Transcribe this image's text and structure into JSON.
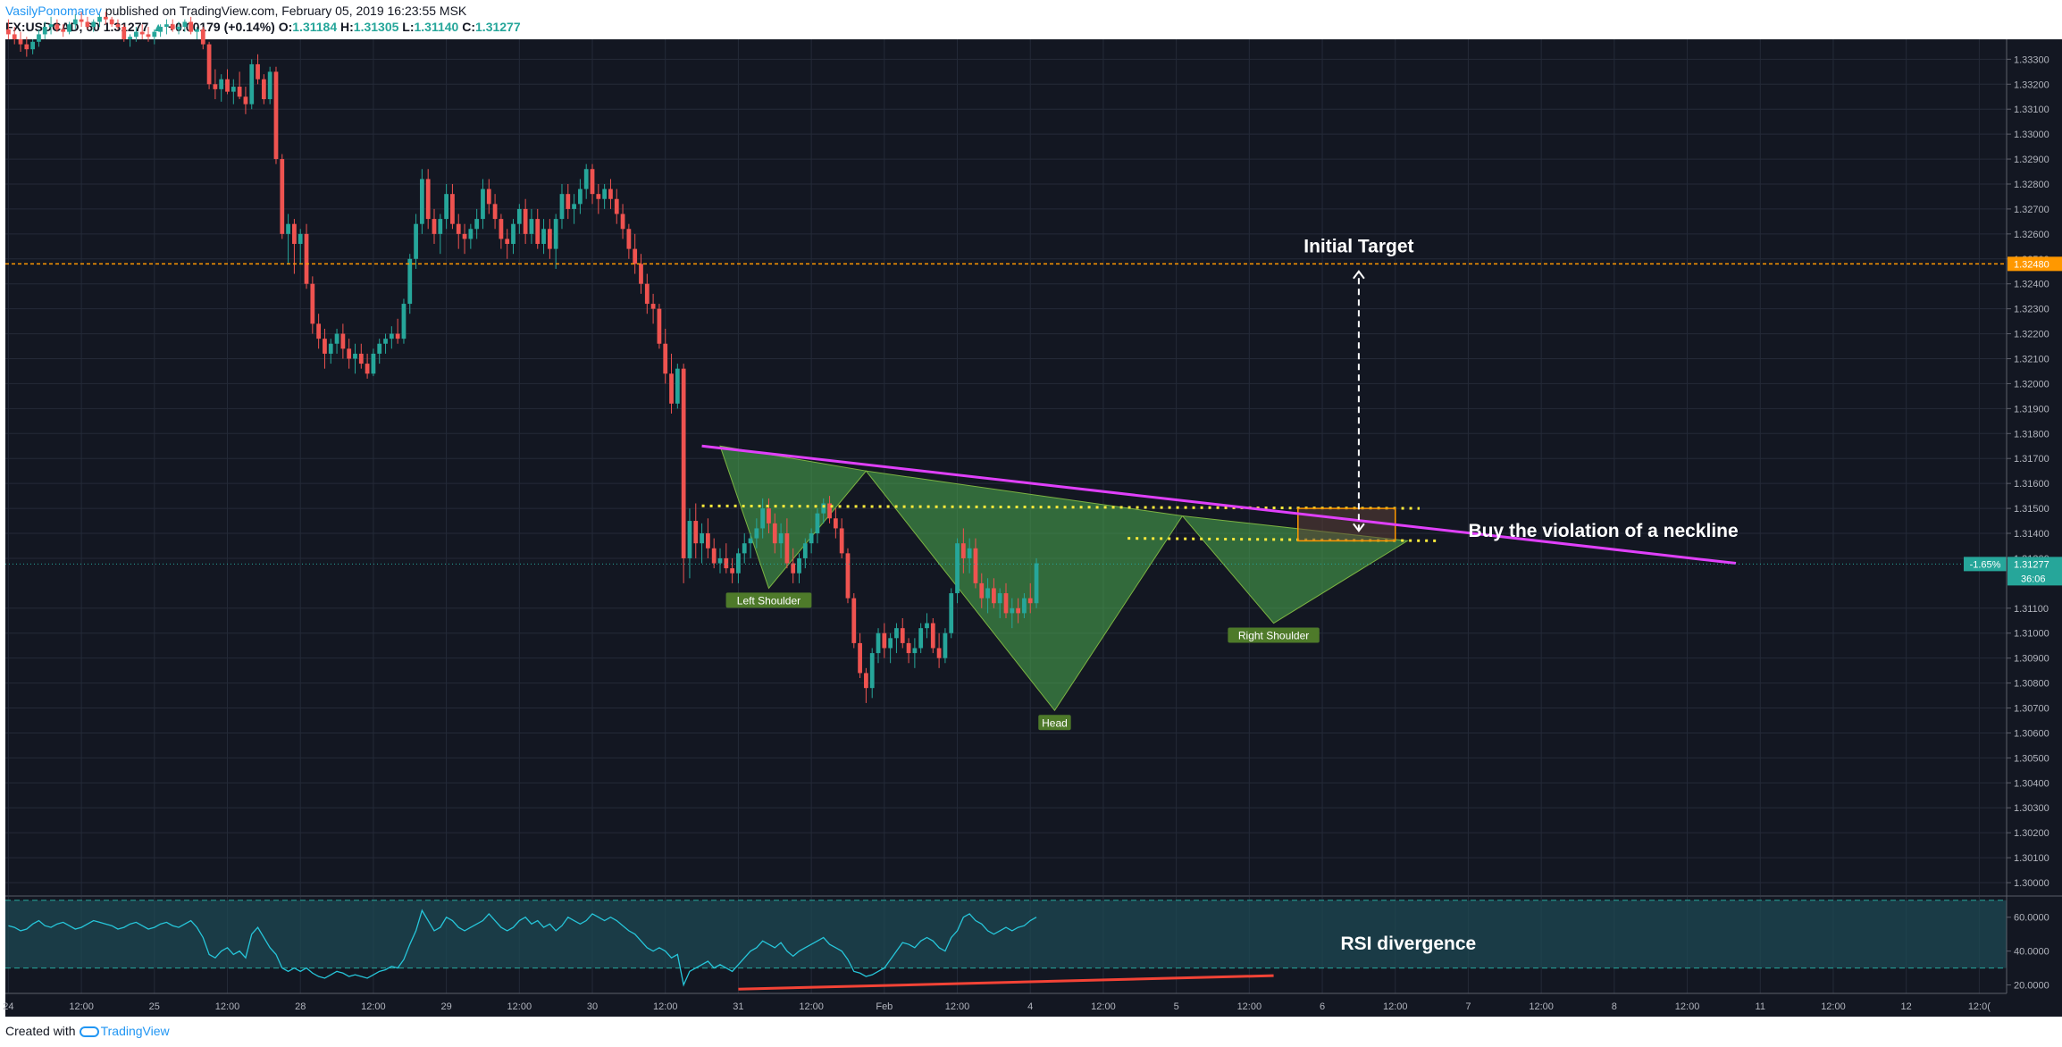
{
  "header": {
    "author": "VasilyPonomarev",
    "published": "published on TradingView.com, February 05, 2019 16:23:55 MSK",
    "symbol": "FX:USDCAD, 60",
    "price": "1.31277",
    "change_arrow": "▲",
    "change": "+0.00179 (+0.14%)",
    "open_label": "O:",
    "open": "1.31184",
    "high_label": "H:",
    "high": "1.31305",
    "low_label": "L:",
    "low": "1.31140",
    "close_label": "C:",
    "close": "1.31277"
  },
  "footer": {
    "created_with": "Created with",
    "brand": "TradingView"
  },
  "colors": {
    "background": "#131722",
    "grid": "#242a38",
    "up": "#26a69a",
    "down": "#ef5350",
    "neckline": "#e040fb",
    "target_line": "#ff9800",
    "pattern_fill": "#4caf50",
    "dotted": "#ffeb3b",
    "rsi_line": "#26c6da",
    "rsi_band": "#1e4b55",
    "divergence": "#f44336",
    "label_bg": "#4e7a2a"
  },
  "chart_data": {
    "type": "candlestick",
    "title": "",
    "price_axis": {
      "ticks": [
        "1.33300",
        "1.33200",
        "1.33100",
        "1.33000",
        "1.32900",
        "1.32800",
        "1.32700",
        "1.32600",
        "1.32500",
        "1.32400",
        "1.32300",
        "1.32200",
        "1.32100",
        "1.32000",
        "1.31900",
        "1.31800",
        "1.31700",
        "1.31600",
        "1.31500",
        "1.31400",
        "1.31300",
        "1.31100",
        "1.31000",
        "1.30900",
        "1.30800",
        "1.30700",
        "1.30600",
        "1.30500",
        "1.30400",
        "1.30300",
        "1.30200",
        "1.30100",
        "1.30000"
      ],
      "range": [
        1.2995,
        1.3338
      ]
    },
    "time_axis": {
      "labels": [
        "24",
        "12:00",
        "25",
        "12:00",
        "28",
        "12:00",
        "29",
        "12:00",
        "30",
        "12:00",
        "31",
        "12:00",
        "Feb",
        "12:00",
        "4",
        "12:00",
        "5",
        "12:00",
        "6",
        "12:00",
        "7",
        "12:00",
        "8",
        "12:00",
        "11",
        "12:00",
        "12",
        "12:0("
      ],
      "bar_index": [
        0,
        12,
        24,
        36,
        48,
        60,
        72,
        84,
        96,
        108,
        120,
        132,
        144,
        156,
        168,
        180,
        192,
        204,
        216,
        228,
        240,
        252,
        264,
        276,
        288,
        300,
        312,
        324
      ],
      "total_bars": 329
    },
    "candles": [
      [
        1.3342,
        1.3346,
        1.3338,
        1.334
      ],
      [
        1.334,
        1.3343,
        1.3336,
        1.3338
      ],
      [
        1.3338,
        1.3341,
        1.3333,
        1.3336
      ],
      [
        1.3336,
        1.3339,
        1.3331,
        1.3334
      ],
      [
        1.3334,
        1.3338,
        1.3332,
        1.3337
      ],
      [
        1.3337,
        1.3342,
        1.3335,
        1.334
      ],
      [
        1.334,
        1.3345,
        1.3338,
        1.3343
      ],
      [
        1.3343,
        1.3347,
        1.334,
        1.3344
      ],
      [
        1.3344,
        1.3346,
        1.3341,
        1.3342
      ],
      [
        1.3342,
        1.3344,
        1.3339,
        1.3341
      ],
      [
        1.3341,
        1.3345,
        1.334,
        1.3344
      ],
      [
        1.3344,
        1.3348,
        1.3342,
        1.3346
      ],
      [
        1.3346,
        1.3349,
        1.3343,
        1.3345
      ],
      [
        1.3345,
        1.3347,
        1.3342,
        1.3343
      ],
      [
        1.3343,
        1.3346,
        1.3341,
        1.3345
      ],
      [
        1.3345,
        1.3348,
        1.3343,
        1.3347
      ],
      [
        1.3347,
        1.3349,
        1.3344,
        1.3346
      ],
      [
        1.3346,
        1.3347,
        1.3343,
        1.3344
      ],
      [
        1.3344,
        1.3346,
        1.3342,
        1.3343
      ],
      [
        1.3343,
        1.3344,
        1.3337,
        1.3338
      ],
      [
        1.3338,
        1.334,
        1.3335,
        1.3339
      ],
      [
        1.3339,
        1.3343,
        1.3337,
        1.3341
      ],
      [
        1.3341,
        1.3344,
        1.3338,
        1.334
      ],
      [
        1.334,
        1.3343,
        1.3337,
        1.3339
      ],
      [
        1.3339,
        1.3342,
        1.3336,
        1.3341
      ],
      [
        1.3341,
        1.3344,
        1.3339,
        1.3343
      ],
      [
        1.3343,
        1.3346,
        1.334,
        1.3344
      ],
      [
        1.3344,
        1.3346,
        1.3341,
        1.3342
      ],
      [
        1.3342,
        1.3345,
        1.334,
        1.3343
      ],
      [
        1.3343,
        1.3346,
        1.3341,
        1.3345
      ],
      [
        1.3345,
        1.3347,
        1.334,
        1.3341
      ],
      [
        1.3341,
        1.3343,
        1.3338,
        1.3342
      ],
      [
        1.3342,
        1.3343,
        1.3334,
        1.3336
      ],
      [
        1.3336,
        1.3337,
        1.3318,
        1.332
      ],
      [
        1.332,
        1.3326,
        1.3314,
        1.3318
      ],
      [
        1.3318,
        1.3324,
        1.3313,
        1.3322
      ],
      [
        1.3322,
        1.3326,
        1.3316,
        1.3317
      ],
      [
        1.3317,
        1.3322,
        1.3312,
        1.3319
      ],
      [
        1.3319,
        1.3325,
        1.3314,
        1.3315
      ],
      [
        1.3315,
        1.3319,
        1.3308,
        1.3312
      ],
      [
        1.3312,
        1.333,
        1.331,
        1.3328
      ],
      [
        1.3328,
        1.3332,
        1.332,
        1.3322
      ],
      [
        1.3322,
        1.3324,
        1.3312,
        1.3314
      ],
      [
        1.3314,
        1.3327,
        1.3312,
        1.3325
      ],
      [
        1.3325,
        1.3327,
        1.3288,
        1.329
      ],
      [
        1.329,
        1.3292,
        1.3258,
        1.326
      ],
      [
        1.326,
        1.3268,
        1.3248,
        1.3264
      ],
      [
        1.3264,
        1.3266,
        1.3244,
        1.3256
      ],
      [
        1.3256,
        1.3262,
        1.3248,
        1.326
      ],
      [
        1.326,
        1.3264,
        1.3238,
        1.324
      ],
      [
        1.324,
        1.3243,
        1.322,
        1.3224
      ],
      [
        1.3224,
        1.3228,
        1.3214,
        1.3218
      ],
      [
        1.3218,
        1.3222,
        1.3206,
        1.3212
      ],
      [
        1.3212,
        1.3218,
        1.3208,
        1.3216
      ],
      [
        1.3216,
        1.3222,
        1.3212,
        1.322
      ],
      [
        1.322,
        1.3224,
        1.321,
        1.3214
      ],
      [
        1.3214,
        1.3218,
        1.3206,
        1.321
      ],
      [
        1.321,
        1.3216,
        1.3204,
        1.3212
      ],
      [
        1.3212,
        1.3216,
        1.3206,
        1.3208
      ],
      [
        1.3208,
        1.3212,
        1.3202,
        1.3204
      ],
      [
        1.3204,
        1.3214,
        1.3203,
        1.3212
      ],
      [
        1.3212,
        1.3218,
        1.3208,
        1.3216
      ],
      [
        1.3216,
        1.322,
        1.3212,
        1.3218
      ],
      [
        1.3218,
        1.3223,
        1.3214,
        1.322
      ],
      [
        1.322,
        1.3226,
        1.3216,
        1.3218
      ],
      [
        1.3218,
        1.3234,
        1.3216,
        1.3232
      ],
      [
        1.3232,
        1.3252,
        1.3228,
        1.325
      ],
      [
        1.325,
        1.3268,
        1.3246,
        1.3264
      ],
      [
        1.3264,
        1.3286,
        1.326,
        1.3282
      ],
      [
        1.3282,
        1.3286,
        1.3262,
        1.3266
      ],
      [
        1.3266,
        1.327,
        1.3256,
        1.326
      ],
      [
        1.326,
        1.3268,
        1.3252,
        1.3266
      ],
      [
        1.3266,
        1.328,
        1.3262,
        1.3276
      ],
      [
        1.3276,
        1.328,
        1.3262,
        1.3264
      ],
      [
        1.3264,
        1.3268,
        1.3254,
        1.326
      ],
      [
        1.326,
        1.3264,
        1.3252,
        1.3258
      ],
      [
        1.3258,
        1.3264,
        1.3254,
        1.3262
      ],
      [
        1.3262,
        1.327,
        1.3258,
        1.3266
      ],
      [
        1.3266,
        1.3282,
        1.3262,
        1.3278
      ],
      [
        1.3278,
        1.3282,
        1.3268,
        1.3272
      ],
      [
        1.3272,
        1.3276,
        1.3262,
        1.3266
      ],
      [
        1.3266,
        1.3268,
        1.3254,
        1.3258
      ],
      [
        1.3258,
        1.3262,
        1.325,
        1.3256
      ],
      [
        1.3256,
        1.3266,
        1.3252,
        1.3264
      ],
      [
        1.3264,
        1.3272,
        1.326,
        1.327
      ],
      [
        1.327,
        1.3274,
        1.3256,
        1.326
      ],
      [
        1.326,
        1.327,
        1.3256,
        1.3266
      ],
      [
        1.3266,
        1.327,
        1.3254,
        1.3256
      ],
      [
        1.3256,
        1.3266,
        1.3252,
        1.3262
      ],
      [
        1.3262,
        1.3266,
        1.325,
        1.3254
      ],
      [
        1.3254,
        1.3268,
        1.3246,
        1.3266
      ],
      [
        1.3266,
        1.328,
        1.3262,
        1.3276
      ],
      [
        1.3276,
        1.328,
        1.3266,
        1.327
      ],
      [
        1.327,
        1.3276,
        1.3264,
        1.3272
      ],
      [
        1.3272,
        1.3282,
        1.3268,
        1.3278
      ],
      [
        1.3278,
        1.3288,
        1.3274,
        1.3286
      ],
      [
        1.3286,
        1.3288,
        1.3272,
        1.3276
      ],
      [
        1.3276,
        1.328,
        1.3268,
        1.3274
      ],
      [
        1.3274,
        1.328,
        1.327,
        1.3278
      ],
      [
        1.3278,
        1.3282,
        1.327,
        1.3274
      ],
      [
        1.3274,
        1.3278,
        1.3264,
        1.3268
      ],
      [
        1.3268,
        1.3272,
        1.3258,
        1.3262
      ],
      [
        1.3262,
        1.3264,
        1.325,
        1.3254
      ],
      [
        1.3254,
        1.326,
        1.3244,
        1.3248
      ],
      [
        1.3248,
        1.3252,
        1.3236,
        1.324
      ],
      [
        1.324,
        1.3244,
        1.3228,
        1.3232
      ],
      [
        1.3232,
        1.3236,
        1.3224,
        1.323
      ],
      [
        1.323,
        1.3232,
        1.3214,
        1.3216
      ],
      [
        1.3216,
        1.3222,
        1.32,
        1.3204
      ],
      [
        1.3204,
        1.3212,
        1.3188,
        1.3192
      ],
      [
        1.3192,
        1.3208,
        1.319,
        1.3206
      ],
      [
        1.3206,
        1.3208,
        1.312,
        1.313
      ],
      [
        1.313,
        1.315,
        1.3122,
        1.3145
      ],
      [
        1.3145,
        1.3152,
        1.313,
        1.3136
      ],
      [
        1.3136,
        1.3144,
        1.3128,
        1.314
      ],
      [
        1.314,
        1.3146,
        1.313,
        1.3134
      ],
      [
        1.3134,
        1.3138,
        1.3126,
        1.3128
      ],
      [
        1.3128,
        1.3134,
        1.3124,
        1.313
      ],
      [
        1.313,
        1.3136,
        1.3124,
        1.3126
      ],
      [
        1.3126,
        1.313,
        1.312,
        1.3124
      ],
      [
        1.3124,
        1.3134,
        1.312,
        1.3132
      ],
      [
        1.3132,
        1.314,
        1.3128,
        1.3136
      ],
      [
        1.3136,
        1.314,
        1.313,
        1.3138
      ],
      [
        1.3138,
        1.3146,
        1.3134,
        1.3142
      ],
      [
        1.3142,
        1.3154,
        1.3138,
        1.315
      ],
      [
        1.315,
        1.3154,
        1.314,
        1.3144
      ],
      [
        1.3144,
        1.3148,
        1.3132,
        1.3136
      ],
      [
        1.3136,
        1.3144,
        1.313,
        1.314
      ],
      [
        1.314,
        1.3146,
        1.3126,
        1.3128
      ],
      [
        1.3128,
        1.3134,
        1.312,
        1.3124
      ],
      [
        1.3124,
        1.3132,
        1.312,
        1.313
      ],
      [
        1.313,
        1.3138,
        1.3126,
        1.3136
      ],
      [
        1.3136,
        1.3142,
        1.3132,
        1.314
      ],
      [
        1.314,
        1.315,
        1.3136,
        1.3148
      ],
      [
        1.3148,
        1.3154,
        1.3144,
        1.3152
      ],
      [
        1.3152,
        1.3155,
        1.3144,
        1.3146
      ],
      [
        1.3146,
        1.315,
        1.3138,
        1.3142
      ],
      [
        1.3142,
        1.3146,
        1.313,
        1.3132
      ],
      [
        1.3132,
        1.3134,
        1.3112,
        1.3114
      ],
      [
        1.3114,
        1.3116,
        1.3094,
        1.3096
      ],
      [
        1.3096,
        1.31,
        1.3082,
        1.3084
      ],
      [
        1.3084,
        1.3086,
        1.3072,
        1.3078
      ],
      [
        1.3078,
        1.3094,
        1.3074,
        1.3092
      ],
      [
        1.3092,
        1.3102,
        1.3088,
        1.31
      ],
      [
        1.31,
        1.3104,
        1.309,
        1.3094
      ],
      [
        1.3094,
        1.31,
        1.3088,
        1.3098
      ],
      [
        1.3098,
        1.3104,
        1.3092,
        1.3102
      ],
      [
        1.3102,
        1.3106,
        1.3094,
        1.3096
      ],
      [
        1.3096,
        1.3098,
        1.3088,
        1.3092
      ],
      [
        1.3092,
        1.3098,
        1.3086,
        1.3094
      ],
      [
        1.3094,
        1.3104,
        1.3092,
        1.3102
      ],
      [
        1.3102,
        1.3108,
        1.3098,
        1.3104
      ],
      [
        1.3104,
        1.3106,
        1.3092,
        1.3094
      ],
      [
        1.3094,
        1.31,
        1.3086,
        1.309
      ],
      [
        1.309,
        1.3102,
        1.3088,
        1.31
      ],
      [
        1.31,
        1.3118,
        1.3098,
        1.3116
      ],
      [
        1.3116,
        1.3138,
        1.3112,
        1.3136
      ],
      [
        1.3136,
        1.3142,
        1.3124,
        1.313
      ],
      [
        1.313,
        1.3138,
        1.3124,
        1.3134
      ],
      [
        1.3134,
        1.3138,
        1.3118,
        1.312
      ],
      [
        1.312,
        1.3124,
        1.311,
        1.3114
      ],
      [
        1.3114,
        1.3122,
        1.3108,
        1.3118
      ],
      [
        1.3118,
        1.3122,
        1.311,
        1.3112
      ],
      [
        1.3112,
        1.3118,
        1.3106,
        1.3116
      ],
      [
        1.3116,
        1.312,
        1.3106,
        1.3108
      ],
      [
        1.3108,
        1.3114,
        1.3102,
        1.311
      ],
      [
        1.311,
        1.3114,
        1.3104,
        1.3108
      ],
      [
        1.3108,
        1.3116,
        1.3106,
        1.3114
      ],
      [
        1.3114,
        1.312,
        1.3108,
        1.3112
      ],
      [
        1.3112,
        1.313,
        1.311,
        1.3128
      ]
    ],
    "annotations": {
      "left_shoulder": "Left Shoulder",
      "head": "Head",
      "right_shoulder": "Right Shoulder",
      "initial_target": "Initial Target",
      "neckline_note": "Buy the violation of a neckline",
      "rsi_note": "RSI divergence"
    },
    "target_price": 1.3248,
    "target_label": "1.32480",
    "neckline": {
      "start": [
        114,
        1.3175
      ],
      "end": [
        284,
        1.3128
      ]
    },
    "resistance_dotted": [
      [
        114,
        1.3151
      ],
      [
        232,
        1.315
      ]
    ],
    "resistance_dotted_2": [
      [
        184,
        1.3138
      ],
      [
        235,
        1.3137
      ]
    ],
    "pattern_points": [
      [
        117,
        1.3175
      ],
      [
        125,
        1.3118
      ],
      [
        141,
        1.3165
      ],
      [
        172,
        1.3069
      ],
      [
        193,
        1.3147
      ],
      [
        208,
        1.3104
      ],
      [
        230,
        1.3137
      ]
    ],
    "current_price_label": "1.31277",
    "current_change_label": "-1.65%",
    "countdown_label": "36:06",
    "rsi": {
      "ticks": [
        "60.0000",
        "40.0000",
        "20.0000"
      ],
      "range": [
        15,
        72
      ],
      "upper": 70,
      "lower": 30,
      "values": [
        55,
        54,
        52,
        53,
        56,
        58,
        55,
        54,
        56,
        57,
        55,
        53,
        54,
        56,
        58,
        57,
        56,
        55,
        53,
        54,
        56,
        57,
        55,
        53,
        54,
        56,
        57,
        55,
        54,
        56,
        58,
        54,
        48,
        38,
        36,
        40,
        42,
        38,
        40,
        36,
        50,
        54,
        48,
        42,
        38,
        30,
        28,
        30,
        28,
        30,
        27,
        25,
        24,
        26,
        28,
        27,
        25,
        26,
        25,
        24,
        26,
        28,
        29,
        31,
        30,
        35,
        44,
        52,
        64,
        58,
        52,
        54,
        60,
        58,
        54,
        52,
        54,
        56,
        58,
        62,
        58,
        54,
        52,
        54,
        58,
        60,
        56,
        58,
        54,
        56,
        52,
        55,
        60,
        58,
        56,
        58,
        62,
        60,
        58,
        60,
        58,
        55,
        52,
        50,
        46,
        42,
        40,
        42,
        40,
        36,
        38,
        20,
        28,
        30,
        32,
        34,
        30,
        32,
        30,
        28,
        32,
        36,
        40,
        42,
        46,
        44,
        42,
        45,
        40,
        37,
        40,
        42,
        44,
        46,
        48,
        44,
        42,
        40,
        35,
        28,
        27,
        25,
        26,
        28,
        30,
        35,
        40,
        45,
        44,
        42,
        46,
        48,
        46,
        42,
        40,
        48,
        52,
        60,
        62,
        58,
        56,
        52,
        50,
        52,
        54,
        52,
        54,
        55,
        58,
        60
      ],
      "divergence": [
        [
          120,
          17.5
        ],
        [
          208,
          25.5
        ]
      ]
    }
  }
}
